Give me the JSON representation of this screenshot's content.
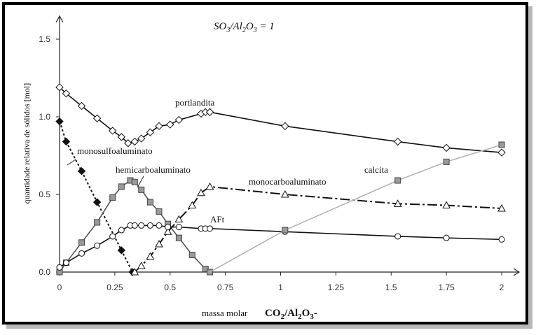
{
  "chart_data": {
    "type": "line",
    "title_parts": [
      "SO",
      "3",
      "/Al",
      "2",
      "O",
      "3",
      " = 1"
    ],
    "xlabel_prefix": "massa molar",
    "xlabel_parts": [
      "CO",
      "2",
      "/Al",
      "2",
      "O",
      "3",
      "-"
    ],
    "ylabel": "quantidade relativa de sólidos [mol]",
    "xlim": [
      0,
      2.05
    ],
    "ylim": [
      0,
      1.65
    ],
    "x_ticks": [
      "0",
      "0.25",
      "0.5",
      "0.75",
      "1",
      "1.25",
      "1.5",
      "1.75",
      "2"
    ],
    "y_ticks": [
      "0.0",
      "0.5",
      "1.0",
      "1.5"
    ],
    "series": [
      {
        "name": "portlandita",
        "color": "#111111",
        "line": "solid",
        "marker": "diamond-open",
        "points": [
          [
            0,
            1.19
          ],
          [
            0.03,
            1.15
          ],
          [
            0.1,
            1.07
          ],
          [
            0.17,
            0.99
          ],
          [
            0.24,
            0.91
          ],
          [
            0.28,
            0.87
          ],
          [
            0.31,
            0.83
          ],
          [
            0.34,
            0.84
          ],
          [
            0.37,
            0.86
          ],
          [
            0.41,
            0.9
          ],
          [
            0.45,
            0.94
          ],
          [
            0.5,
            0.95
          ],
          [
            0.54,
            0.98
          ],
          [
            0.64,
            1.02
          ],
          [
            0.66,
            1.03
          ],
          [
            0.68,
            1.03
          ],
          [
            1.02,
            0.94
          ],
          [
            1.53,
            0.84
          ],
          [
            1.75,
            0.8
          ],
          [
            2.0,
            0.77
          ]
        ]
      },
      {
        "name": "monosulfoaluminato",
        "color": "#111111",
        "line": "dotted",
        "marker": "diamond-filled",
        "points": [
          [
            0,
            0.97
          ],
          [
            0.03,
            0.84
          ],
          [
            0.1,
            0.65
          ],
          [
            0.17,
            0.45
          ],
          [
            0.28,
            0.14
          ],
          [
            0.33,
            0.0
          ]
        ]
      },
      {
        "name": "hemicarboaluminato",
        "color": "#555555",
        "line": "solid",
        "marker": "square-gray",
        "points": [
          [
            0,
            0.0
          ],
          [
            0.03,
            0.06
          ],
          [
            0.1,
            0.19
          ],
          [
            0.17,
            0.32
          ],
          [
            0.24,
            0.48
          ],
          [
            0.28,
            0.55
          ],
          [
            0.32,
            0.59
          ],
          [
            0.34,
            0.58
          ],
          [
            0.37,
            0.53
          ],
          [
            0.41,
            0.45
          ],
          [
            0.45,
            0.39
          ],
          [
            0.49,
            0.31
          ],
          [
            0.54,
            0.22
          ],
          [
            0.6,
            0.11
          ],
          [
            0.66,
            0.02
          ],
          [
            0.68,
            0.0
          ]
        ]
      },
      {
        "name": "monocarboaluminato",
        "color": "#111111",
        "line": "dashdot",
        "marker": "triangle-open",
        "points": [
          [
            0.34,
            0.0
          ],
          [
            0.37,
            0.04
          ],
          [
            0.41,
            0.1
          ],
          [
            0.45,
            0.18
          ],
          [
            0.49,
            0.26
          ],
          [
            0.54,
            0.34
          ],
          [
            0.6,
            0.43
          ],
          [
            0.64,
            0.51
          ],
          [
            0.68,
            0.55
          ],
          [
            1.02,
            0.5
          ],
          [
            1.53,
            0.44
          ],
          [
            1.75,
            0.43
          ],
          [
            2.0,
            0.41
          ]
        ]
      },
      {
        "name": "AFt",
        "color": "#111111",
        "line": "solid",
        "marker": "circle-open",
        "points": [
          [
            0,
            0.03
          ],
          [
            0.03,
            0.06
          ],
          [
            0.1,
            0.12
          ],
          [
            0.17,
            0.17
          ],
          [
            0.24,
            0.23
          ],
          [
            0.28,
            0.27
          ],
          [
            0.32,
            0.3
          ],
          [
            0.34,
            0.3
          ],
          [
            0.37,
            0.3
          ],
          [
            0.41,
            0.3
          ],
          [
            0.45,
            0.3
          ],
          [
            0.49,
            0.29
          ],
          [
            0.54,
            0.29
          ],
          [
            0.64,
            0.28
          ],
          [
            0.66,
            0.28
          ],
          [
            0.68,
            0.28
          ],
          [
            1.02,
            0.26
          ],
          [
            1.53,
            0.23
          ],
          [
            1.75,
            0.22
          ],
          [
            2.0,
            0.21
          ]
        ]
      },
      {
        "name": "calcita",
        "color": "#b3b3b3",
        "line": "solid",
        "marker": "square-gray",
        "points": [
          [
            0.68,
            0.0
          ],
          [
            1.02,
            0.27
          ],
          [
            1.53,
            0.59
          ],
          [
            1.75,
            0.71
          ],
          [
            2.0,
            0.82
          ]
        ],
        "marker_indices": [
          1,
          2,
          3,
          4
        ]
      }
    ]
  }
}
